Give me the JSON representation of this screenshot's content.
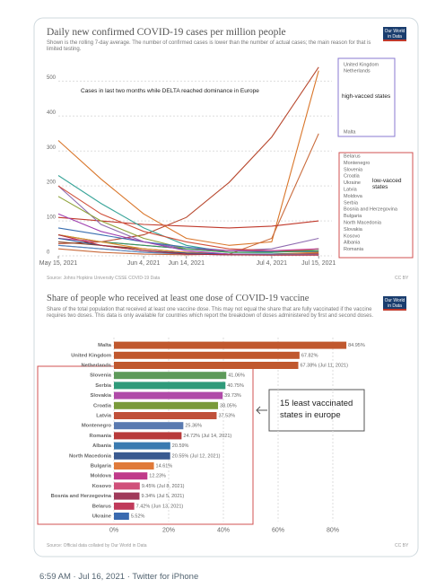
{
  "tweet": {
    "footer": "6:59 AM · Jul 16, 2021 · Twitter for iPhone"
  },
  "chart_data": [
    {
      "type": "line",
      "title": "Daily new confirmed COVID-19 cases per million people",
      "subtitle": "Shown is the rolling 7-day average. The number of confirmed cases is lower than the number of actual cases; the main reason for that is limited testing.",
      "logo": "Our World in Data",
      "source": "Source: Johns Hopkins University CSSE COVID-19 Data",
      "license": "CC BY",
      "annotations": [
        "Cases in last two months while DELTA reached dominance in Europe",
        "high-vacced states",
        "low-vacced states"
      ],
      "x": [
        "2021-05-15",
        "2021-05-25",
        "2021-06-04",
        "2021-06-14",
        "2021-06-24",
        "2021-07-04",
        "2021-07-15"
      ],
      "xlim": [
        "2021-05-15",
        "2021-07-16"
      ],
      "xticks": [
        {
          "value": "2021-05-15",
          "label": "May 15, 2021"
        },
        {
          "value": "2021-06-04",
          "label": "Jun 4, 2021"
        },
        {
          "value": "2021-06-14",
          "label": "Jun 14, 2021"
        },
        {
          "value": "2021-07-04",
          "label": "Jul 4, 2021"
        },
        {
          "value": "2021-07-15",
          "label": "Jul 15, 2021"
        }
      ],
      "ylim": [
        0,
        560
      ],
      "yticks": [
        0,
        100,
        200,
        300,
        400,
        500
      ],
      "grid": true,
      "legend": "right",
      "series": [
        {
          "name": "United Kingdom",
          "color": "#b8492f",
          "values": [
            35,
            40,
            60,
            110,
            210,
            340,
            540
          ]
        },
        {
          "name": "Netherlands",
          "color": "#d9762a",
          "values": [
            330,
            220,
            120,
            50,
            30,
            40,
            530
          ]
        },
        {
          "name": "Malta",
          "color": "#c96a3a",
          "values": [
            20,
            10,
            5,
            3,
            5,
            50,
            350
          ]
        },
        {
          "name": "Belarus",
          "color": "#c0392b",
          "values": [
            110,
            100,
            90,
            85,
            80,
            85,
            100
          ]
        },
        {
          "name": "Montenegro",
          "color": "#8e6bb0",
          "values": [
            200,
            90,
            40,
            20,
            15,
            20,
            50
          ]
        },
        {
          "name": "Slovenia",
          "color": "#3aa59a",
          "values": [
            230,
            150,
            80,
            30,
            10,
            10,
            20
          ]
        },
        {
          "name": "Croatia",
          "color": "#8fa33a",
          "values": [
            170,
            100,
            50,
            20,
            10,
            10,
            20
          ]
        },
        {
          "name": "Ukraine",
          "color": "#3a6fb0",
          "values": [
            80,
            60,
            40,
            25,
            15,
            12,
            12
          ]
        },
        {
          "name": "Latvia",
          "color": "#d0503a",
          "values": [
            200,
            120,
            70,
            40,
            20,
            15,
            15
          ]
        },
        {
          "name": "Moldova",
          "color": "#c2409a",
          "values": [
            50,
            40,
            30,
            20,
            15,
            15,
            20
          ]
        },
        {
          "name": "Serbia",
          "color": "#2f9a5a",
          "values": [
            60,
            40,
            30,
            20,
            10,
            10,
            15
          ]
        },
        {
          "name": "Bosnia and Herzegovina",
          "color": "#8a4a2a",
          "values": [
            40,
            30,
            20,
            10,
            5,
            5,
            8
          ]
        },
        {
          "name": "Bulgaria",
          "color": "#e08a2a",
          "values": [
            60,
            40,
            20,
            10,
            5,
            5,
            10
          ]
        },
        {
          "name": "North Macedonia",
          "color": "#2a5a9a",
          "values": [
            50,
            30,
            15,
            8,
            5,
            5,
            5
          ]
        },
        {
          "name": "Slovakia",
          "color": "#a040b0",
          "values": [
            120,
            70,
            40,
            15,
            5,
            3,
            5
          ]
        },
        {
          "name": "Kosovo",
          "color": "#e0608a",
          "values": [
            30,
            20,
            10,
            5,
            3,
            3,
            5
          ]
        },
        {
          "name": "Albania",
          "color": "#4a8ac0",
          "values": [
            30,
            20,
            10,
            5,
            3,
            3,
            3
          ]
        },
        {
          "name": "Romania",
          "color": "#b02a3a",
          "values": [
            60,
            30,
            15,
            5,
            3,
            2,
            2
          ]
        }
      ]
    },
    {
      "type": "barh",
      "title": "Share of people who received at least one dose of COVID-19 vaccine",
      "subtitle": "Share of the total population that received at least one vaccine dose. This may not equal the share that are fully vaccinated if the vaccine requires two doses. This data is only available for countries which report the breakdown of doses administered by first and second doses.",
      "logo": "Our World in Data",
      "source": "Source: Official data collated by Our World in Data",
      "license": "CC BY",
      "annotation": "15 least vaccinated states in europe",
      "categories": [
        "Malta",
        "United Kingdom",
        "Netherlands",
        "Slovenia",
        "Serbia",
        "Slovakia",
        "Croatia",
        "Latvia",
        "Montenegro",
        "Romania",
        "Albania",
        "North Macedonia",
        "Bulgaria",
        "Moldova",
        "Kosovo",
        "Bosnia and Herzegovina",
        "Belarus",
        "Ukraine"
      ],
      "values": [
        84.95,
        67.82,
        67.38,
        41.06,
        40.75,
        39.73,
        38.05,
        37.53,
        25.36,
        24.72,
        20.59,
        20.55,
        14.61,
        12.23,
        9.45,
        9.34,
        7.42,
        5.52
      ],
      "value_labels": [
        "84.95%",
        "67.82%",
        "67.38% (Jul 11, 2021)",
        "41.06%",
        "40.75%",
        "39.73%",
        "38.05%",
        "37.53%",
        "25.36%",
        "24.72% (Jul 14, 2021)",
        "20.59%",
        "20.55% (Jul 12, 2021)",
        "14.61%",
        "12.23%",
        "9.45% (Jul 8, 2021)",
        "9.34% (Jul 5, 2021)",
        "7.42% (Jun 13, 2021)",
        "5.52%"
      ],
      "colors": [
        "#c0582e",
        "#c0582e",
        "#c0582e",
        "#5e9a5a",
        "#2f9a7a",
        "#b04aa8",
        "#7a9a3a",
        "#c0503a",
        "#5a7ab0",
        "#b83a3a",
        "#3a7ab0",
        "#3a5a90",
        "#e07a3a",
        "#c03a8a",
        "#d0507a",
        "#a03a5a",
        "#c03a5a",
        "#3a6ab0"
      ],
      "xlim": [
        0,
        90
      ],
      "xticks": [
        {
          "value": 0,
          "label": "0%"
        },
        {
          "value": 20,
          "label": "20%"
        },
        {
          "value": 40,
          "label": "40%"
        },
        {
          "value": 60,
          "label": "60%"
        },
        {
          "value": 80,
          "label": "80%"
        }
      ],
      "grid": true
    }
  ]
}
